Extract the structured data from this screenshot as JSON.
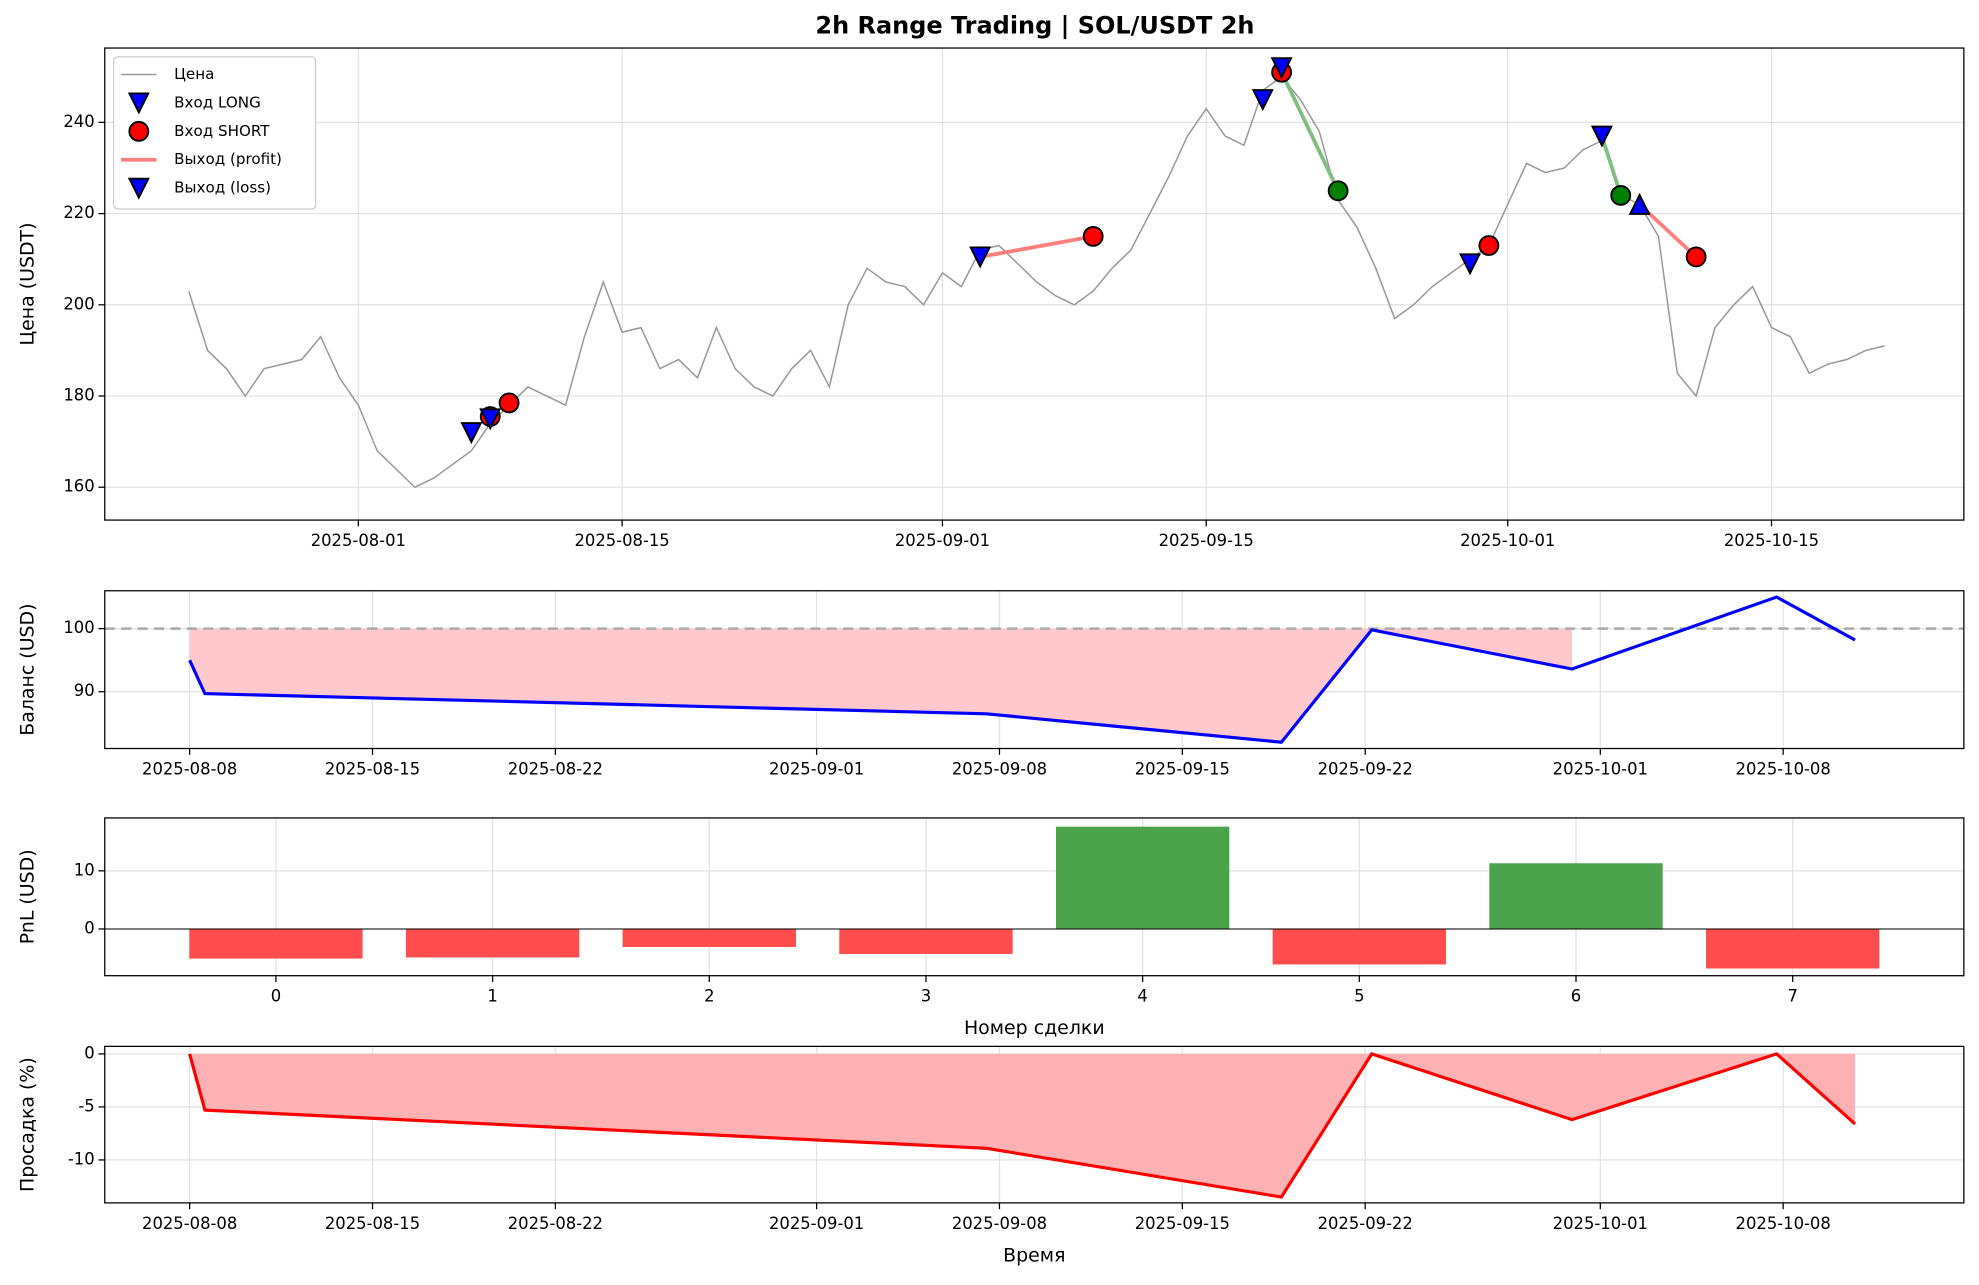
{
  "chart_data": [
    {
      "type": "line",
      "title": "2h Range Trading | SOL/USDT 2h",
      "ylabel": "Цена (USDT)",
      "legend": "upper left",
      "grid": true,
      "xlim": [
        "2025-07-18T13:00",
        "2025-10-25T05:00"
      ],
      "xticks": [
        "2025-08-01",
        "2025-08-15",
        "2025-09-01",
        "2025-09-15",
        "2025-10-01",
        "2025-10-15"
      ],
      "ylim": [
        152.8,
        256.3
      ],
      "yticks": [
        160,
        180,
        200,
        220,
        240
      ],
      "series": [
        {
          "name": "Цена",
          "kind": "line",
          "color": "#999999",
          "x": [
            "2025-07-23",
            "2025-07-24",
            "2025-07-25",
            "2025-07-26",
            "2025-07-27",
            "2025-07-28",
            "2025-07-29",
            "2025-07-30",
            "2025-07-31",
            "2025-08-01",
            "2025-08-02",
            "2025-08-03",
            "2025-08-04",
            "2025-08-05",
            "2025-08-06",
            "2025-08-07",
            "2025-08-08",
            "2025-08-09",
            "2025-08-10",
            "2025-08-11",
            "2025-08-12",
            "2025-08-13",
            "2025-08-14",
            "2025-08-15",
            "2025-08-16",
            "2025-08-17",
            "2025-08-18",
            "2025-08-19",
            "2025-08-20",
            "2025-08-21",
            "2025-08-22",
            "2025-08-23",
            "2025-08-24",
            "2025-08-25",
            "2025-08-26",
            "2025-08-27",
            "2025-08-28",
            "2025-08-29",
            "2025-08-30",
            "2025-08-31",
            "2025-09-01",
            "2025-09-02",
            "2025-09-03",
            "2025-09-04",
            "2025-09-05",
            "2025-09-06",
            "2025-09-07",
            "2025-09-08",
            "2025-09-09",
            "2025-09-10",
            "2025-09-11",
            "2025-09-12",
            "2025-09-13",
            "2025-09-14",
            "2025-09-15",
            "2025-09-16",
            "2025-09-17",
            "2025-09-18",
            "2025-09-19",
            "2025-09-20",
            "2025-09-21",
            "2025-09-22",
            "2025-09-23",
            "2025-09-24",
            "2025-09-25",
            "2025-09-26",
            "2025-09-27",
            "2025-09-28",
            "2025-09-29",
            "2025-09-30",
            "2025-10-01",
            "2025-10-02",
            "2025-10-03",
            "2025-10-04",
            "2025-10-05",
            "2025-10-06",
            "2025-10-07",
            "2025-10-08",
            "2025-10-09",
            "2025-10-10",
            "2025-10-11",
            "2025-10-12",
            "2025-10-13",
            "2025-10-14",
            "2025-10-15",
            "2025-10-16",
            "2025-10-17",
            "2025-10-18",
            "2025-10-19",
            "2025-10-20",
            "2025-10-21"
          ],
          "values": [
            203,
            190,
            186,
            180,
            186,
            187,
            188,
            193,
            184,
            178,
            168,
            164,
            160,
            162,
            165,
            168,
            174,
            178,
            182,
            180,
            178,
            193,
            205,
            194,
            195,
            186,
            188,
            184,
            195,
            186,
            182,
            180,
            186,
            190,
            182,
            200,
            208,
            205,
            204,
            200,
            207,
            204,
            212,
            213,
            209,
            205,
            202,
            200,
            203,
            208,
            212,
            220,
            228,
            237,
            243,
            237,
            235,
            247,
            250,
            245,
            238,
            223,
            217,
            208,
            197,
            200,
            204,
            207,
            210,
            213,
            222,
            231,
            229,
            230,
            234,
            236,
            224,
            222,
            215,
            185,
            180,
            195,
            200,
            204,
            195,
            193,
            185,
            187,
            188,
            190,
            191
          ]
        },
        {
          "name": "Вход LONG",
          "kind": "scatter",
          "marker": "v",
          "color": "#0000ff",
          "x": [
            "2025-08-07",
            "2025-09-03",
            "2025-09-18",
            "2025-09-29",
            "2025-10-06"
          ],
          "values": [
            172,
            210.5,
            245,
            209,
            237
          ]
        },
        {
          "name": "Вход SHORT",
          "kind": "scatter",
          "marker": "o",
          "color": "#ff0000",
          "x": [
            "2025-08-08",
            "2025-08-09",
            "2025-09-09",
            "2025-09-19",
            "2025-09-30",
            "2025-10-11"
          ],
          "values": [
            175.5,
            178.5,
            215,
            251,
            213,
            210.5
          ]
        },
        {
          "name": "Выход (profit)",
          "kind": "segments",
          "color": "#ff7f7f",
          "colors": [
            "#ff7f7f",
            "#7fbf7f",
            "#7fbf7f",
            "#ff7f7f"
          ],
          "x": [
            "2025-09-03",
            "2025-09-09",
            "2025-09-19",
            "2025-09-22",
            "2025-10-06",
            "2025-10-07",
            "2025-10-08",
            "2025-10-11"
          ],
          "values": [
            210.5,
            215,
            251,
            225,
            237,
            224,
            222,
            210.5
          ]
        },
        {
          "name": "Выход (loss)",
          "kind": "scatter",
          "marker": "v",
          "color": "#0000ff",
          "x": [
            "2025-08-08",
            "2025-09-19"
          ],
          "values": [
            175,
            252
          ]
        },
        {
          "kind": "scatter",
          "marker": "o",
          "color": "#008000",
          "x": [
            "2025-09-22",
            "2025-10-07"
          ],
          "values": [
            225,
            224
          ]
        },
        {
          "kind": "scatter",
          "marker": "^",
          "color": "#0000ff",
          "x": [
            "2025-10-08"
          ],
          "values": [
            222
          ]
        }
      ]
    },
    {
      "type": "balance",
      "ylabel": "Баланс (USD)",
      "grid": true,
      "color": "#0000ff",
      "fill_color": "#ffc8cc",
      "hline": 100,
      "xlim": [
        "2025-08-04T18:00",
        "2025-10-14T22:00"
      ],
      "xticks": [
        "2025-08-08",
        "2025-08-15",
        "2025-08-22",
        "2025-09-01",
        "2025-09-08",
        "2025-09-15",
        "2025-09-22",
        "2025-10-01",
        "2025-10-08"
      ],
      "ylim": [
        81,
        106
      ],
      "yticks": [
        90,
        100
      ],
      "x": [
        "2025-08-08T00:00",
        "2025-08-08T14:00",
        "2025-09-07T12:00",
        "2025-09-18T19:00",
        "2025-09-22T06:00",
        "2025-09-29T22:00",
        "2025-10-07T18:00",
        "2025-10-10T18:00"
      ],
      "values": [
        95,
        89.7,
        86.5,
        82,
        99.8,
        93.6,
        105,
        98.2
      ]
    },
    {
      "type": "bar",
      "ylabel": "PnL (USD)",
      "xlabel": "Номер сделки",
      "grid": true,
      "xlim": [
        -0.79,
        7.79
      ],
      "xticks": [
        0,
        1,
        2,
        3,
        4,
        5,
        6,
        7
      ],
      "ylim": [
        -8.04,
        19.1
      ],
      "yticks": [
        0,
        10
      ],
      "x": [
        0,
        1,
        2,
        3,
        4,
        5,
        6,
        7
      ],
      "values": [
        -5.1,
        -4.9,
        -3.1,
        -4.3,
        17.6,
        -6.1,
        11.3,
        -6.8
      ],
      "colors": [
        "#ff4d4d",
        "#ff4d4d",
        "#ff4d4d",
        "#ff4d4d",
        "#4aa34a",
        "#ff4d4d",
        "#4aa34a",
        "#ff4d4d"
      ]
    },
    {
      "type": "area",
      "ylabel": "Просадка (%)",
      "xlabel": "Время",
      "grid": true,
      "color": "#ff0000",
      "fill_color": "#ffb1b4",
      "xlim": [
        "2025-08-04T18:00",
        "2025-10-14T22:00"
      ],
      "xticks": [
        "2025-08-08",
        "2025-08-15",
        "2025-08-22",
        "2025-09-01",
        "2025-09-08",
        "2025-09-15",
        "2025-09-22",
        "2025-10-01",
        "2025-10-08"
      ],
      "ylim": [
        -14.05,
        0.71
      ],
      "yticks": [
        -10,
        -5,
        0
      ],
      "x": [
        "2025-08-08T00:00",
        "2025-08-08T14:00",
        "2025-09-07T12:00",
        "2025-09-18T19:00",
        "2025-09-22T06:00",
        "2025-09-29T22:00",
        "2025-10-07T18:00",
        "2025-10-10T18:00"
      ],
      "values": [
        0,
        -5.3,
        -8.9,
        -13.5,
        0,
        -6.2,
        0,
        -6.6
      ]
    }
  ]
}
